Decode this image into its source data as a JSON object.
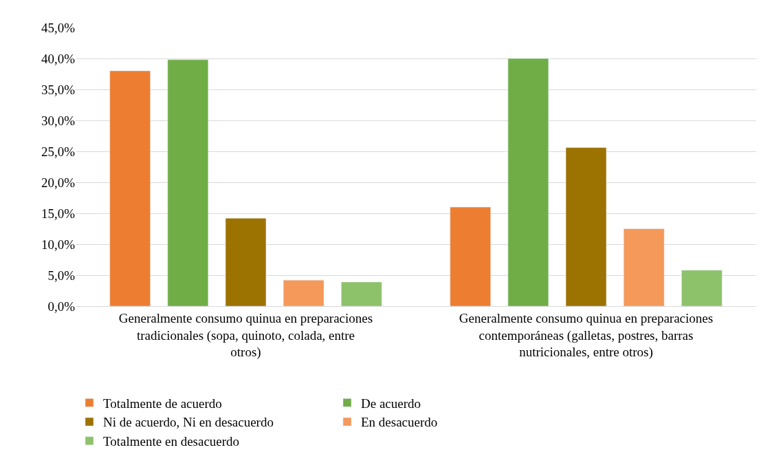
{
  "chart_data": {
    "type": "bar",
    "categories": [
      "Generalmente consumo quinua en preparaciones tradicionales (sopa, quinoto, colada, entre otros)",
      "Generalmente consumo quinua en preparaciones contemporáneas (galletas, postres, barras nutricionales, entre otros)"
    ],
    "series": [
      {
        "name": "Totalmente de acuerdo",
        "color": "#ed7d31",
        "values": [
          38.0,
          16.0
        ]
      },
      {
        "name": "De acuerdo",
        "color": "#70ad47",
        "values": [
          39.8,
          40.0
        ]
      },
      {
        "name": "Ni de acuerdo, Ni en desacuerdo",
        "color": "#9c7200",
        "values": [
          14.2,
          25.6
        ]
      },
      {
        "name": "En desacuerdo",
        "color": "#f4995a",
        "values": [
          4.2,
          12.5
        ]
      },
      {
        "name": "Totalmente en desacuerdo",
        "color": "#8dc26a",
        "values": [
          3.9,
          5.8
        ]
      }
    ],
    "ylim": [
      0,
      45
    ],
    "yticks": [
      {
        "value": 0,
        "label": "0,0%"
      },
      {
        "value": 5,
        "label": "5,0%"
      },
      {
        "value": 10,
        "label": "10,0%"
      },
      {
        "value": 15,
        "label": "15,0%"
      },
      {
        "value": 20,
        "label": "20,0%"
      },
      {
        "value": 25,
        "label": "25,0%"
      },
      {
        "value": 30,
        "label": "30,0%"
      },
      {
        "value": 35,
        "label": "35,0%"
      },
      {
        "value": 40,
        "label": "40,0%"
      },
      {
        "value": 45,
        "label": "45,0%"
      }
    ],
    "grid": "y",
    "legend": "bottom"
  }
}
